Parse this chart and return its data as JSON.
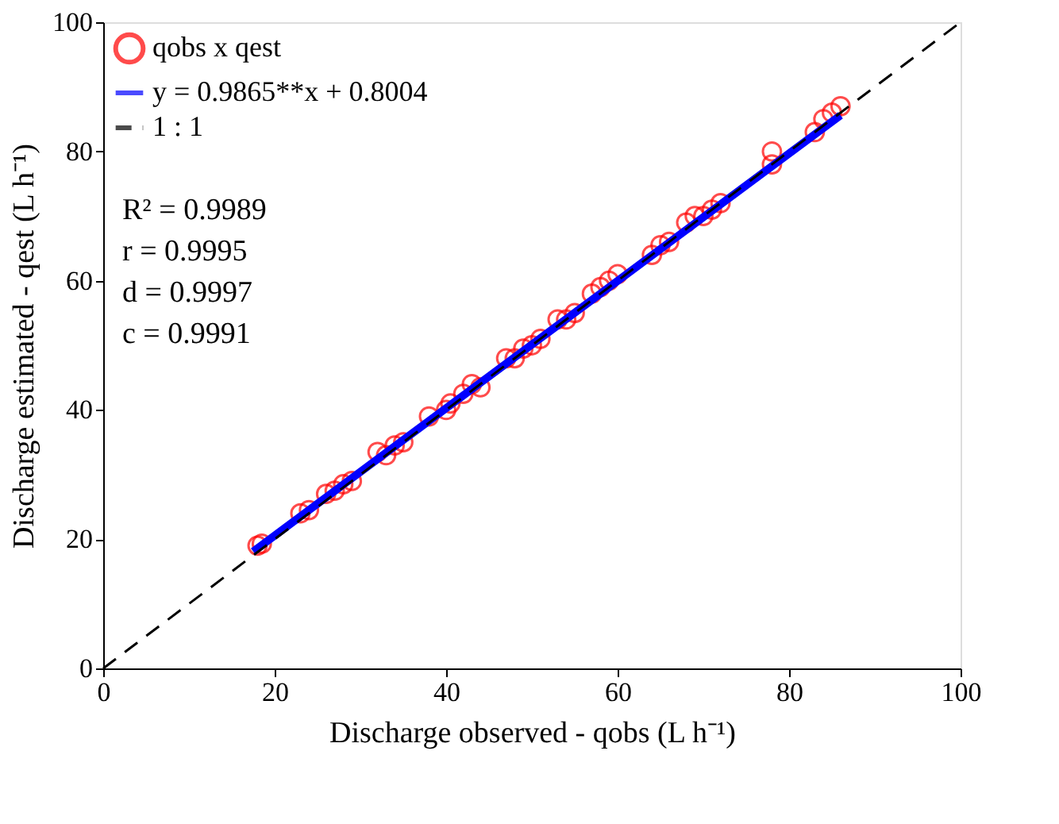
{
  "chart_data": {
    "type": "scatter",
    "xlabel": "Discharge observed - qobs (L h⁻¹)",
    "ylabel": "Discharge estimated - qest (L h⁻¹)",
    "xlim": [
      0,
      100
    ],
    "ylim": [
      0,
      100
    ],
    "xticks": [
      0,
      20,
      40,
      60,
      80,
      100
    ],
    "yticks": [
      0,
      20,
      40,
      60,
      80,
      100
    ],
    "grid": false,
    "legend": "top left",
    "annotations": [
      "R² = 0.9989",
      "r = 0.9995",
      "d = 0.9997",
      "c = 0.9991"
    ],
    "series": [
      {
        "name": "qobs x qest",
        "marker": "circle",
        "color": "#ff0000",
        "x": [
          18,
          18.5,
          23,
          24,
          26,
          27,
          28,
          29,
          32,
          33,
          34,
          35,
          38,
          40,
          40.5,
          42,
          43,
          44,
          47,
          48,
          49,
          50,
          51,
          53,
          54,
          55,
          57,
          58,
          59,
          60,
          64,
          65,
          66,
          68,
          69,
          70,
          71,
          72,
          78,
          78,
          83,
          84,
          85,
          86
        ],
        "values": [
          19,
          19.3,
          24,
          24.5,
          27,
          27.5,
          28.5,
          29,
          33.5,
          33,
          34.5,
          35,
          39,
          40,
          41,
          42.5,
          44,
          43.5,
          48,
          48,
          49.5,
          50,
          51,
          54,
          54,
          55,
          58,
          59,
          60,
          61,
          64,
          65.5,
          66,
          69,
          70,
          70,
          71,
          72,
          78,
          80,
          83,
          85,
          86,
          87
        ]
      },
      {
        "name": "y = 0.9865**x + 0.8004",
        "type": "line",
        "color": "#0000ff",
        "line_style": "solid",
        "marker": "none",
        "x": [
          17.5,
          86
        ],
        "values": [
          18.1,
          85.6
        ]
      },
      {
        "name": "1 : 1",
        "type": "line",
        "color": "#000000",
        "line_style": "dashed",
        "marker": "none",
        "x": [
          0,
          100
        ],
        "values": [
          0,
          100
        ]
      }
    ]
  }
}
